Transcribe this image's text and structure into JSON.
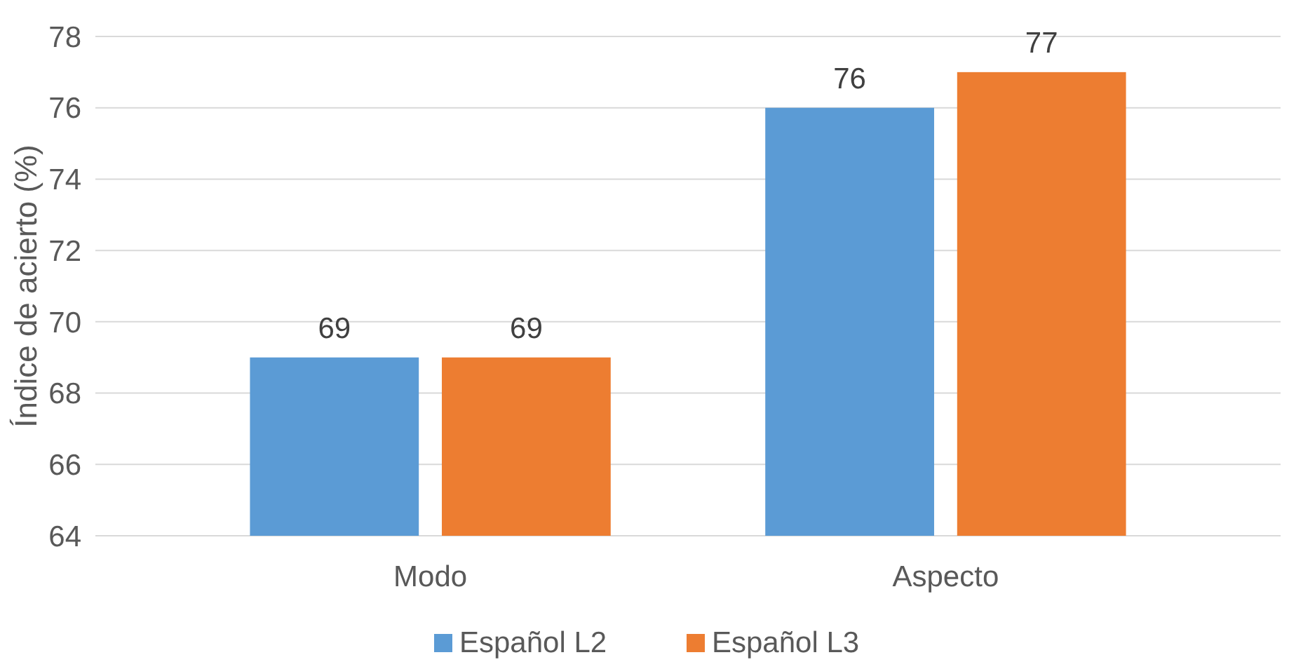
{
  "chart_data": {
    "type": "bar",
    "ylabel": "Índice de acierto (%)",
    "categories": [
      "Modo",
      "Aspecto"
    ],
    "series": [
      {
        "name": "Español L2",
        "color": "#5b9bd5",
        "values": [
          69,
          76
        ]
      },
      {
        "name": "Español L3",
        "color": "#ed7d31",
        "values": [
          69,
          77
        ]
      }
    ],
    "ylim": [
      64,
      78
    ],
    "yticks": [
      64,
      66,
      68,
      70,
      72,
      74,
      76,
      78
    ],
    "grid": "y",
    "data_labels": true,
    "legend": "bottom"
  }
}
